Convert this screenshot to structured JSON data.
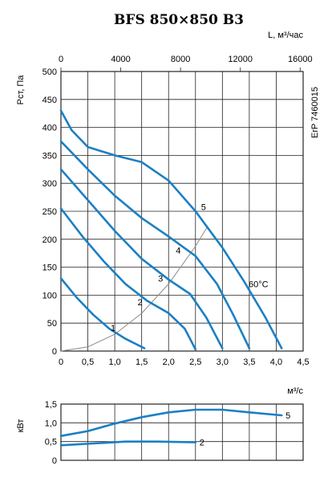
{
  "chart_data": [
    {
      "type": "line",
      "title": "BFS 850×850 B3",
      "xlabel": "м³/с",
      "ylabel": "Рст, Па",
      "x2label": "L, м³/час",
      "side_label": "ErP 7460015",
      "xlim": [
        0,
        4.5
      ],
      "ylim": [
        0,
        500
      ],
      "x2lim": [
        0,
        16200
      ],
      "xticks": [
        "0",
        "0,5",
        "1,0",
        "1,5",
        "2,0",
        "2,5",
        "3,0",
        "3,5",
        "4,0",
        "4,5"
      ],
      "yticks": [
        "0",
        "50",
        "100",
        "150",
        "200",
        "250",
        "300",
        "350",
        "400",
        "450",
        "500"
      ],
      "x2ticks": [
        "0",
        "4000",
        "8000",
        "12000",
        "16000"
      ],
      "grid": true,
      "series": [
        {
          "name": "1",
          "x": [
            0,
            0.3,
            0.6,
            0.9,
            1.2,
            1.55
          ],
          "y": [
            130,
            95,
            65,
            40,
            22,
            5
          ]
        },
        {
          "name": "2",
          "x": [
            0,
            0.4,
            0.8,
            1.2,
            1.6,
            2.0,
            2.3,
            2.5
          ],
          "y": [
            255,
            205,
            160,
            120,
            90,
            68,
            40,
            3
          ]
        },
        {
          "name": "3",
          "x": [
            0,
            0.5,
            1.0,
            1.5,
            2.0,
            2.4,
            2.7,
            3.0
          ],
          "y": [
            325,
            270,
            215,
            165,
            128,
            102,
            60,
            5
          ]
        },
        {
          "name": "4",
          "x": [
            0,
            0.5,
            1.0,
            1.5,
            2.0,
            2.5,
            2.9,
            3.2,
            3.5
          ],
          "y": [
            375,
            325,
            278,
            238,
            205,
            170,
            120,
            65,
            5
          ]
        },
        {
          "name": "5",
          "x": [
            0,
            0.2,
            0.5,
            1.0,
            1.5,
            2.0,
            2.5,
            3.0,
            3.4,
            3.8,
            4.1
          ],
          "y": [
            430,
            395,
            365,
            350,
            338,
            305,
            250,
            185,
            125,
            60,
            5
          ]
        }
      ],
      "system_curve": {
        "x": [
          0,
          0.5,
          1.0,
          1.5,
          2.0,
          2.5,
          2.72
        ],
        "y": [
          0,
          7.5,
          30,
          67.5,
          120,
          187.5,
          222
        ]
      },
      "annotations": [
        {
          "text": "1",
          "x": 0.97,
          "y": 42
        },
        {
          "text": "2",
          "x": 1.47,
          "y": 88
        },
        {
          "text": "3",
          "x": 1.85,
          "y": 130
        },
        {
          "text": "4",
          "x": 2.18,
          "y": 180
        },
        {
          "text": "5",
          "x": 2.65,
          "y": 258
        },
        {
          "text": "60°C",
          "x": 3.67,
          "y": 120
        }
      ]
    },
    {
      "type": "line",
      "ylabel": "кВт",
      "xlim": [
        0,
        4.5
      ],
      "ylim": [
        0,
        1.5
      ],
      "yticks": [
        "0",
        "0,5",
        "1,0",
        "1,5"
      ],
      "grid": true,
      "series": [
        {
          "name": "2",
          "x": [
            0,
            0.6,
            1.2,
            1.8,
            2.5
          ],
          "y": [
            0.4,
            0.45,
            0.5,
            0.5,
            0.48
          ]
        },
        {
          "name": "5",
          "x": [
            0,
            0.5,
            1.0,
            1.5,
            2.0,
            2.5,
            3.0,
            3.5,
            4.1
          ],
          "y": [
            0.65,
            0.78,
            0.98,
            1.15,
            1.28,
            1.35,
            1.35,
            1.28,
            1.2
          ]
        }
      ]
    }
  ]
}
